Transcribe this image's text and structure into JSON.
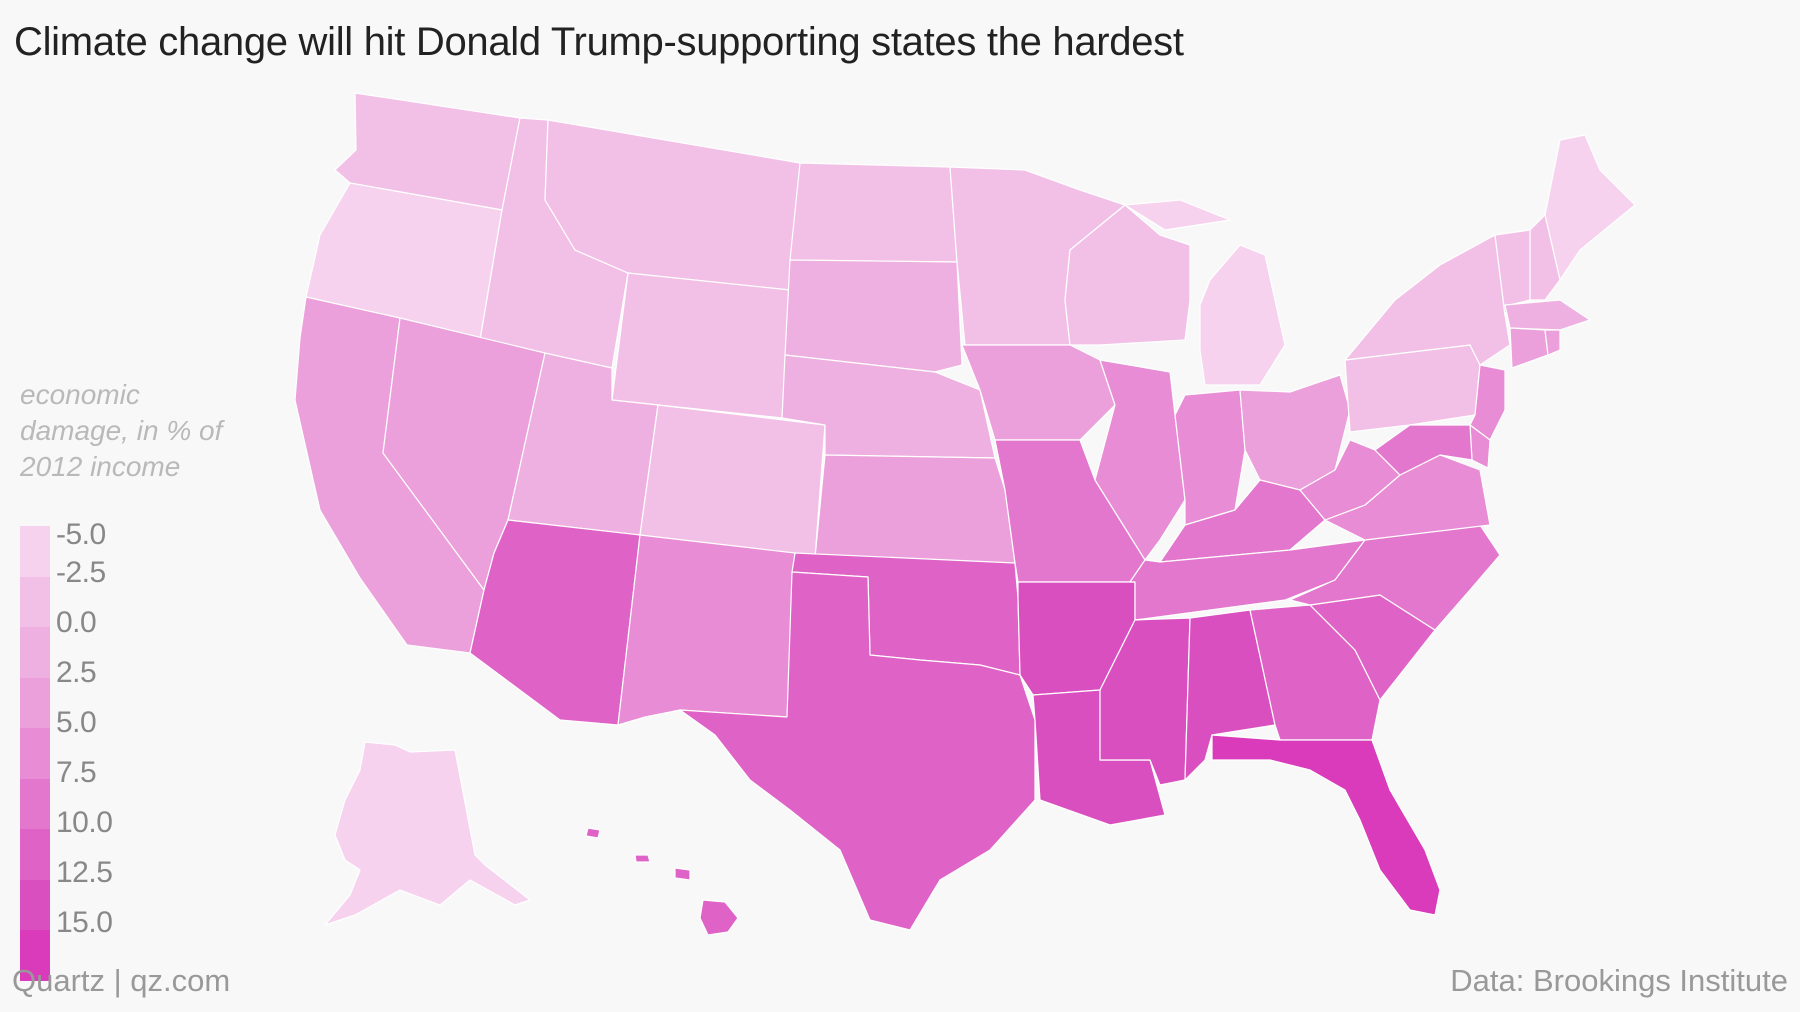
{
  "title": "Climate change will hit Donald Trump-supporting states the hardest",
  "legend": {
    "title_lines": [
      "economic",
      "damage, in % of",
      "2012 income"
    ],
    "labels": [
      "-5.0",
      "-2.5",
      "0.0",
      "2.5",
      "5.0",
      "7.5",
      "10.0",
      "12.5",
      "15.0"
    ],
    "colors": [
      "#f6d2ee",
      "#f2c0e6",
      "#eeb0e0",
      "#eb9fdb",
      "#e78cd5",
      "#e277cd",
      "#df63c7",
      "#da4fc0",
      "#d93bbb"
    ]
  },
  "footer": {
    "source_left": "Quartz | qz.com",
    "source_right": "Data: Brookings Institute"
  },
  "map_data": {
    "type": "choropleth",
    "region": "United States",
    "scale_min": -5.0,
    "scale_max": 15.0,
    "states": [
      {
        "id": "WA",
        "bin": -2.5
      },
      {
        "id": "OR",
        "bin": -5.0
      },
      {
        "id": "CA",
        "bin": 2.5
      },
      {
        "id": "ID",
        "bin": -2.5
      },
      {
        "id": "NV",
        "bin": 2.5
      },
      {
        "id": "MT",
        "bin": -2.5
      },
      {
        "id": "WY",
        "bin": -2.5
      },
      {
        "id": "UT",
        "bin": 0.0
      },
      {
        "id": "AZ",
        "bin": 10.0
      },
      {
        "id": "CO",
        "bin": -2.5
      },
      {
        "id": "NM",
        "bin": 5.0
      },
      {
        "id": "ND",
        "bin": -2.5
      },
      {
        "id": "SD",
        "bin": 0.0
      },
      {
        "id": "NE",
        "bin": 0.0
      },
      {
        "id": "KS",
        "bin": 2.5
      },
      {
        "id": "OK",
        "bin": 10.0
      },
      {
        "id": "TX",
        "bin": 10.0
      },
      {
        "id": "MN",
        "bin": -2.5
      },
      {
        "id": "IA",
        "bin": 2.5
      },
      {
        "id": "MO",
        "bin": 7.5
      },
      {
        "id": "AR",
        "bin": 12.5
      },
      {
        "id": "LA",
        "bin": 12.5
      },
      {
        "id": "WI",
        "bin": -2.5
      },
      {
        "id": "IL",
        "bin": 5.0
      },
      {
        "id": "MI",
        "bin": -5.0
      },
      {
        "id": "IN",
        "bin": 5.0
      },
      {
        "id": "OH",
        "bin": 2.5
      },
      {
        "id": "KY",
        "bin": 7.5
      },
      {
        "id": "TN",
        "bin": 7.5
      },
      {
        "id": "MS",
        "bin": 12.5
      },
      {
        "id": "AL",
        "bin": 12.5
      },
      {
        "id": "GA",
        "bin": 10.0
      },
      {
        "id": "FL",
        "bin": 15.0
      },
      {
        "id": "SC",
        "bin": 10.0
      },
      {
        "id": "NC",
        "bin": 7.5
      },
      {
        "id": "VA",
        "bin": 5.0
      },
      {
        "id": "WV",
        "bin": 5.0
      },
      {
        "id": "PA",
        "bin": -2.5
      },
      {
        "id": "NY",
        "bin": -2.5
      },
      {
        "id": "ME",
        "bin": -5.0
      },
      {
        "id": "NH",
        "bin": -2.5
      },
      {
        "id": "VT",
        "bin": -2.5
      },
      {
        "id": "MA",
        "bin": 0.0
      },
      {
        "id": "CT",
        "bin": 2.5
      },
      {
        "id": "RI",
        "bin": 2.5
      },
      {
        "id": "NJ",
        "bin": 5.0
      },
      {
        "id": "DE",
        "bin": 5.0
      },
      {
        "id": "MD",
        "bin": 7.5
      },
      {
        "id": "AK",
        "bin": -5.0
      },
      {
        "id": "HI",
        "bin": 10.0
      }
    ]
  }
}
